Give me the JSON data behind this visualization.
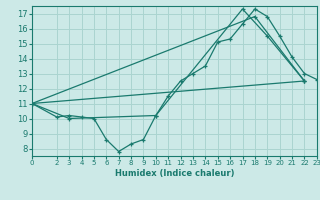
{
  "xlabel": "Humidex (Indice chaleur)",
  "bg_color": "#cce9e7",
  "grid_color": "#aad4d0",
  "line_color": "#1a7a6e",
  "xlim": [
    0,
    23
  ],
  "ylim": [
    7.5,
    17.5
  ],
  "xticks": [
    0,
    2,
    3,
    4,
    5,
    6,
    7,
    8,
    9,
    10,
    11,
    12,
    13,
    14,
    15,
    16,
    17,
    18,
    19,
    20,
    21,
    22,
    23
  ],
  "yticks": [
    8,
    9,
    10,
    11,
    12,
    13,
    14,
    15,
    16,
    17
  ],
  "series": [
    {
      "x": [
        0,
        2,
        3,
        4,
        5,
        6,
        7,
        8,
        9,
        10,
        11,
        12,
        13,
        14,
        15,
        16,
        17,
        18,
        19,
        20,
        21,
        22,
        23
      ],
      "y": [
        11.0,
        10.1,
        10.2,
        10.1,
        10.0,
        8.6,
        7.8,
        8.3,
        8.6,
        10.2,
        11.5,
        12.5,
        13.0,
        13.5,
        15.1,
        15.3,
        16.3,
        17.3,
        16.8,
        15.5,
        14.1,
        13.0,
        12.6
      ]
    },
    {
      "x": [
        0,
        3,
        10,
        17,
        19,
        22
      ],
      "y": [
        11.0,
        10.0,
        10.2,
        17.3,
        15.5,
        12.5
      ]
    },
    {
      "x": [
        0,
        18,
        22
      ],
      "y": [
        11.0,
        16.8,
        12.5
      ]
    },
    {
      "x": [
        0,
        22
      ],
      "y": [
        11.0,
        12.5
      ]
    }
  ]
}
